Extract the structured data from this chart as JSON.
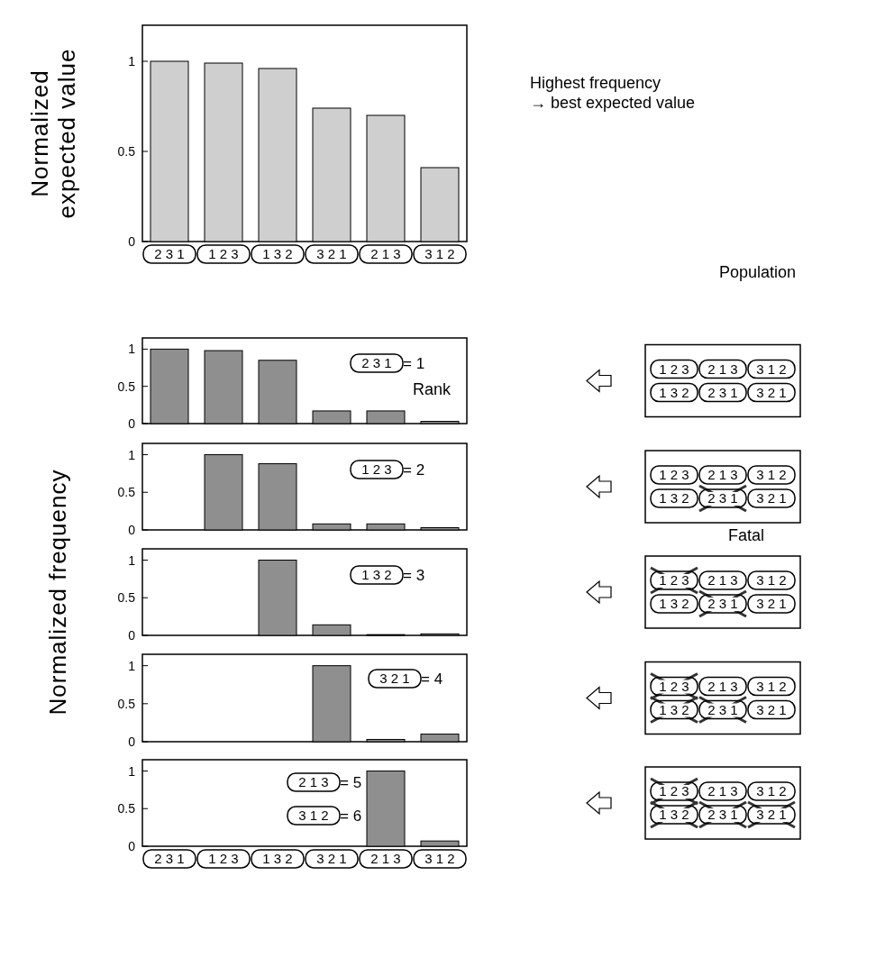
{
  "chart_data": [
    {
      "type": "bar",
      "ylabel": "Normalized\nexpected value",
      "categories": [
        "2 3 1",
        "1 2 3",
        "1 3 2",
        "3 2 1",
        "2 1 3",
        "3 1 2"
      ],
      "values": [
        1,
        0.99,
        0.96,
        0.74,
        0.7,
        0.41
      ],
      "color": "#cfcfcf",
      "ylim": [
        0,
        1.2
      ],
      "yticks": [
        0,
        0.5,
        1
      ],
      "annotations": [
        "Highest frequency\n→ best expected value"
      ]
    },
    {
      "type": "bar",
      "categories": [
        "2 3 1",
        "1 2 3",
        "1 3 2",
        "3 2 1",
        "2 1 3",
        "3 1 2"
      ],
      "values": [
        1,
        0.98,
        0.85,
        0.17,
        0.17,
        0.03
      ],
      "color": "#8f8f8f",
      "ylim": [
        0,
        1.15
      ],
      "yticks": [
        0,
        0.5,
        1
      ],
      "tick_labels": "y",
      "annotations": [
        "2 3 1 = 1",
        "Rank",
        "Population"
      ]
    },
    {
      "type": "bar",
      "categories": [
        "2 3 1",
        "1 2 3",
        "1 3 2",
        "3 2 1",
        "2 1 3",
        "3 1 2"
      ],
      "values": [
        null,
        1,
        0.88,
        0.08,
        0.08,
        0.03
      ],
      "color": "#8f8f8f",
      "ylim": [
        0,
        1.15
      ],
      "yticks": [
        0,
        0.5,
        1
      ],
      "tick_labels": "y",
      "annotations": [
        "1 2 3 = 2",
        "Fatal"
      ]
    },
    {
      "type": "bar",
      "ylabel": "Normalized frequency",
      "categories": [
        "2 3 1",
        "1 2 3",
        "1 3 2",
        "3 2 1",
        "2 1 3",
        "3 1 2"
      ],
      "values": [
        null,
        null,
        1,
        0.14,
        0.01,
        0.02
      ],
      "color": "#8f8f8f",
      "ylim": [
        0,
        1.15
      ],
      "yticks": [
        0,
        0.5,
        1
      ],
      "tick_labels": "y",
      "annotations": [
        "1 3 2 = 3"
      ]
    },
    {
      "type": "bar",
      "categories": [
        "2 3 1",
        "1 2 3",
        "1 3 2",
        "3 2 1",
        "2 1 3",
        "3 1 2"
      ],
      "values": [
        null,
        null,
        null,
        1,
        0.03,
        0.1
      ],
      "color": "#8f8f8f",
      "ylim": [
        0,
        1.15
      ],
      "yticks": [
        0,
        0.5,
        1
      ],
      "tick_labels": "y",
      "annotations": [
        "3 2 1 = 4"
      ]
    },
    {
      "type": "bar",
      "categories": [
        "2 3 1",
        "1 2 3",
        "1 3 2",
        "3 2 1",
        "2 1 3",
        "3 1 2"
      ],
      "values": [
        null,
        null,
        null,
        null,
        1,
        0.07
      ],
      "color": "#8f8f8f",
      "ylim": [
        0,
        1.15
      ],
      "yticks": [
        0,
        0.5,
        1
      ],
      "annotations": [
        "2 1 3 = 5",
        "3 1 2 = 6"
      ]
    }
  ]
}
